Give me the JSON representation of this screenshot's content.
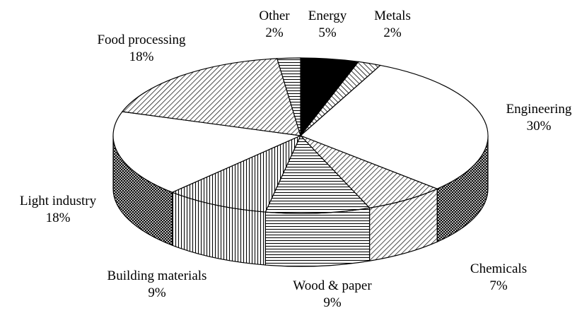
{
  "chart_data": {
    "type": "pie3d",
    "labels": [
      "Energy",
      "Metals",
      "Engineering",
      "Chemicals",
      "Wood & paper",
      "Building materials",
      "Light industry",
      "Food processing",
      "Other"
    ],
    "values": [
      5,
      2,
      30,
      7,
      9,
      9,
      18,
      18,
      2
    ],
    "value_labels": [
      "5%",
      "2%",
      "30%",
      "7%",
      "9%",
      "9%",
      "18%",
      "18%",
      "2%"
    ],
    "fills": [
      "solid",
      "diag-wide",
      "white",
      "diag",
      "horizontal",
      "vertical",
      "white",
      "diag",
      "horizontal"
    ]
  }
}
